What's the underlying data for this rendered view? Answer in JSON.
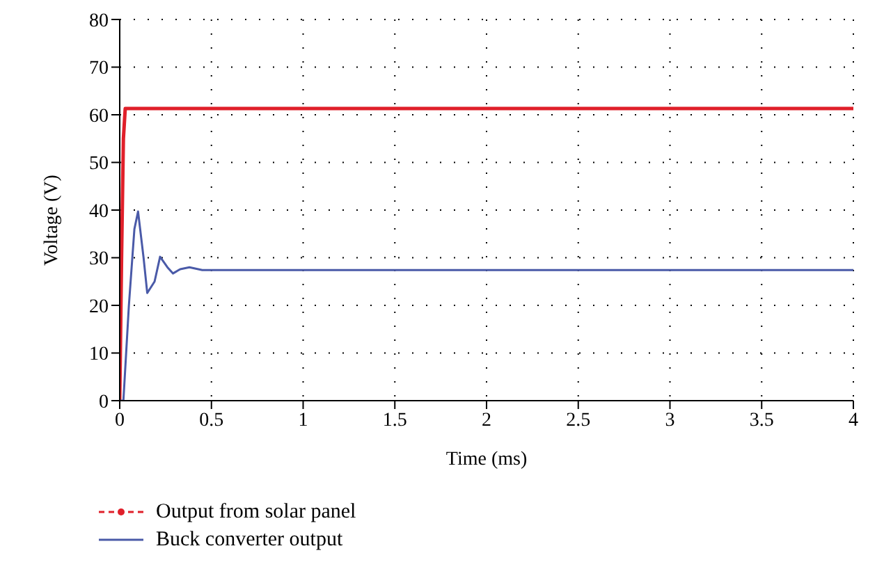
{
  "chart_data": {
    "type": "line",
    "xlabel": "Time (ms)",
    "ylabel": "Voltage (V)",
    "xlim": [
      0,
      4
    ],
    "ylim": [
      0,
      80
    ],
    "xticks": [
      0,
      0.5,
      1,
      1.5,
      2,
      2.5,
      3,
      3.5,
      4
    ],
    "yticks": [
      0,
      10,
      20,
      30,
      40,
      50,
      60,
      70,
      80
    ],
    "grid": true,
    "legend": "bottom",
    "series": [
      {
        "name": "Output from solar panel",
        "color": "#e0202a",
        "x": [
          0,
          0.01,
          0.02,
          0.03,
          0.5,
          1,
          2,
          3,
          4
        ],
        "values": [
          0,
          30,
          55,
          61.3,
          61.3,
          61.3,
          61.3,
          61.3,
          61.3
        ]
      },
      {
        "name": "Buck converter output",
        "color": "#4a5aa8",
        "x": [
          0,
          0.02,
          0.05,
          0.08,
          0.1,
          0.13,
          0.15,
          0.19,
          0.22,
          0.26,
          0.29,
          0.33,
          0.38,
          0.45,
          0.5,
          1,
          2,
          3,
          4
        ],
        "values": [
          0,
          0,
          20,
          36,
          39.7,
          30,
          22.6,
          25,
          30.2,
          28,
          26.7,
          27.6,
          28,
          27.4,
          27.4,
          27.4,
          27.4,
          27.4,
          27.4
        ]
      }
    ]
  }
}
